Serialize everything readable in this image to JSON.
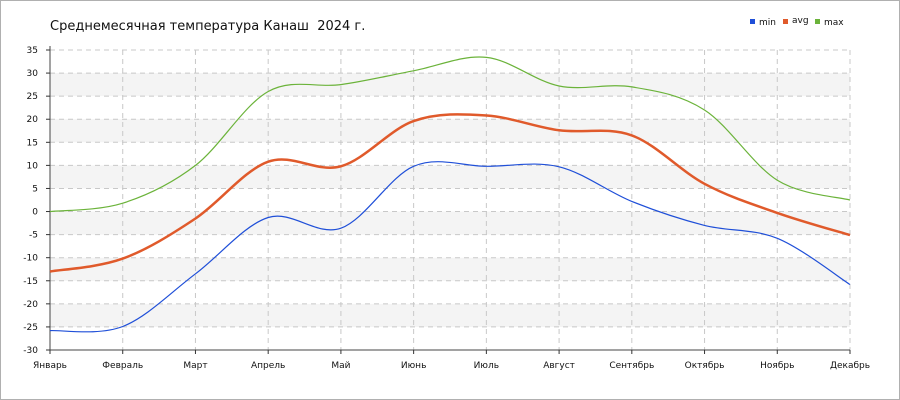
{
  "chart_data": {
    "type": "line",
    "title": "Среднемесячная температура Канаш  2024 г.",
    "categories": [
      "Январь",
      "Февраль",
      "Март",
      "Апрель",
      "Май",
      "Июнь",
      "Июль",
      "Август",
      "Сентябрь",
      "Октябрь",
      "Ноябрь",
      "Декабрь"
    ],
    "ylim": [
      -30,
      35
    ],
    "yticks": [
      35,
      30,
      25,
      20,
      15,
      10,
      5,
      0,
      -5,
      -10,
      -15,
      -20,
      -25,
      -30
    ],
    "grid": true,
    "legend_position": "top-right",
    "series": [
      {
        "name": "min",
        "color": "#1f4fd8",
        "values": [
          -25.8,
          -24.9,
          -13.5,
          -1.3,
          -3.6,
          9.8,
          9.8,
          9.7,
          2.2,
          -3.0,
          -5.8,
          -15.8
        ]
      },
      {
        "name": "avg",
        "color": "#e05a2b",
        "values": [
          -13.0,
          -10.2,
          -1.5,
          10.8,
          9.8,
          19.6,
          20.8,
          17.6,
          16.5,
          6.0,
          -0.3,
          -5.1
        ]
      },
      {
        "name": "max",
        "color": "#6bb33a",
        "values": [
          0.0,
          1.8,
          10.0,
          26.0,
          27.5,
          30.5,
          33.4,
          27.2,
          27.0,
          22.0,
          6.8,
          2.5
        ]
      }
    ]
  }
}
